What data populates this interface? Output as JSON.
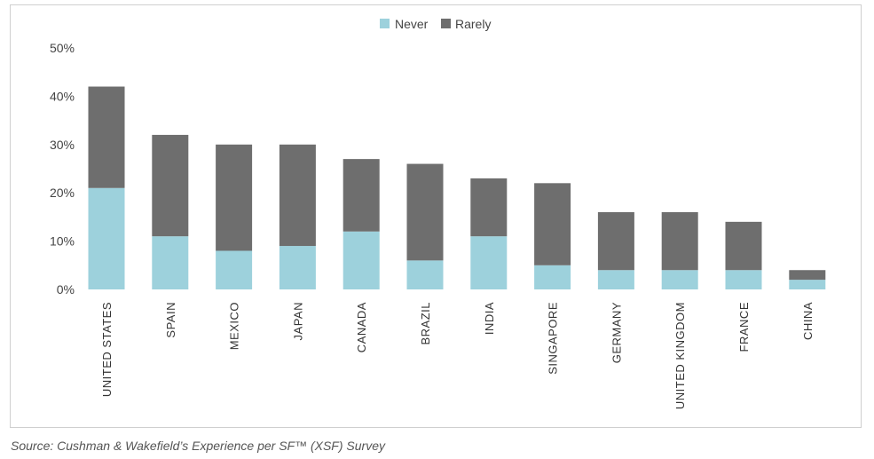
{
  "chart_data": {
    "type": "bar",
    "stacked": true,
    "categories": [
      "UNITED STATES",
      "SPAIN",
      "MEXICO",
      "JAPAN",
      "CANADA",
      "BRAZIL",
      "INDIA",
      "SINGAPORE",
      "GERMANY",
      "UNITED KINGDOM",
      "FRANCE",
      "CHINA"
    ],
    "series": [
      {
        "name": "Never",
        "color": "#9dd1dc",
        "values": [
          21,
          11,
          8,
          9,
          12,
          6,
          11,
          5,
          4,
          4,
          4,
          2
        ]
      },
      {
        "name": "Rarely",
        "color": "#6e6e6e",
        "values": [
          21,
          21,
          22,
          21,
          15,
          20,
          12,
          17,
          12,
          12,
          10,
          2
        ]
      }
    ],
    "ylim": [
      0,
      50
    ],
    "yticks": [
      "0%",
      "10%",
      "20%",
      "30%",
      "40%",
      "50%"
    ],
    "grid": false,
    "legend": "top-center"
  },
  "source": "Source: Cushman & Wakefield’s Experience per SF™ (XSF) Survey"
}
